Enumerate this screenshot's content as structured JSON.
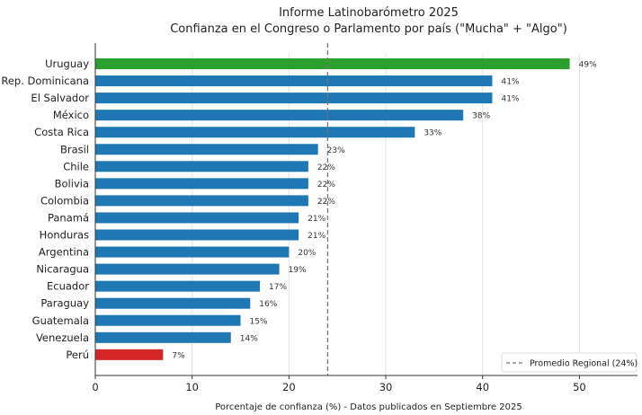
{
  "chart_data": {
    "type": "bar",
    "orientation": "horizontal",
    "title": "Informe Latinobarómetro 2025",
    "subtitle": "Confianza en el Congreso o Parlamento por país (\"Mucha\" + \"Algo\")",
    "xlabel": "Porcentaje de confianza (%) - Datos publicados en Septiembre 2025",
    "ylabel": "",
    "xlim": [
      0,
      56
    ],
    "xticks": [
      0,
      10,
      20,
      30,
      40,
      50
    ],
    "grid": "vertical",
    "categories": [
      "Uruguay",
      "Rep. Dominicana",
      "El Salvador",
      "México",
      "Costa Rica",
      "Brasil",
      "Chile",
      "Bolivia",
      "Colombia",
      "Panamá",
      "Honduras",
      "Argentina",
      "Nicaragua",
      "Ecuador",
      "Paraguay",
      "Guatemala",
      "Venezuela",
      "Perú"
    ],
    "values": [
      49,
      41,
      41,
      38,
      33,
      23,
      22,
      22,
      22,
      21,
      21,
      20,
      19,
      17,
      16,
      15,
      14,
      7
    ],
    "value_labels": [
      "49%",
      "41%",
      "41%",
      "38%",
      "33%",
      "23%",
      "22%",
      "22%",
      "22%",
      "21%",
      "21%",
      "20%",
      "19%",
      "17%",
      "16%",
      "15%",
      "14%",
      "7%"
    ],
    "bar_colors": [
      "#2ca02c",
      "#1f77b4",
      "#1f77b4",
      "#1f77b4",
      "#1f77b4",
      "#1f77b4",
      "#1f77b4",
      "#1f77b4",
      "#1f77b4",
      "#1f77b4",
      "#1f77b4",
      "#1f77b4",
      "#1f77b4",
      "#1f77b4",
      "#1f77b4",
      "#1f77b4",
      "#1f77b4",
      "#d62728"
    ],
    "reference_line": {
      "value": 24,
      "label": "Promedio Regional (24%)",
      "style": "dashed",
      "color": "#777777"
    },
    "legend_position": "bottom-right"
  }
}
